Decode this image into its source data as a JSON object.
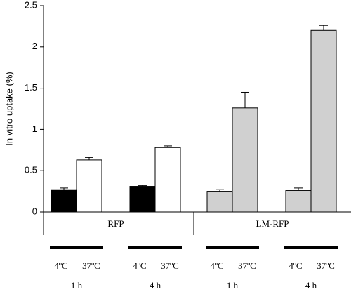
{
  "chart_data": {
    "type": "bar",
    "y_label": "In vitro uptake (%)",
    "ylim": [
      0,
      2.5
    ],
    "yticks": [
      0,
      0.5,
      1,
      1.5,
      2,
      2.5
    ],
    "categories": [
      "4ºC",
      "37ºC",
      "4ºC",
      "37ºC",
      "4ºC",
      "37ºC",
      "4ºC",
      "37ºC"
    ],
    "values": [
      0.27,
      0.63,
      0.31,
      0.78,
      0.25,
      1.26,
      0.26,
      2.2
    ],
    "errors": [
      0.02,
      0.03,
      0.01,
      0.02,
      0.02,
      0.19,
      0.03,
      0.06
    ],
    "colors": [
      "#000000",
      "#ffffff",
      "#000000",
      "#ffffff",
      "#d0d0d0",
      "#d0d0d0",
      "#d0d0d0",
      "#d0d0d0"
    ],
    "time_labels": [
      "1 h",
      "4 h",
      "1 h",
      "4 h"
    ],
    "constructs": [
      "RFP",
      "LM-RFP"
    ]
  }
}
